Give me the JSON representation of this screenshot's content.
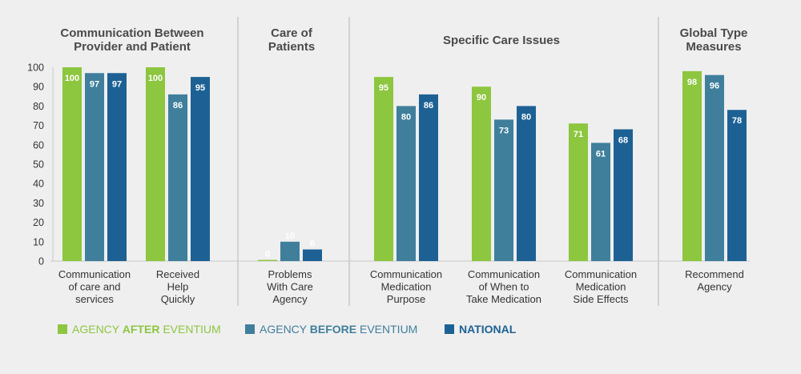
{
  "chart_data": {
    "type": "bar",
    "ylim": [
      0,
      100
    ],
    "yticks": [
      0,
      10,
      20,
      30,
      40,
      50,
      60,
      70,
      80,
      90,
      100
    ],
    "groups": [
      {
        "title": [
          "Communication Between",
          "Provider and Patient"
        ],
        "categories": [
          0,
          1
        ]
      },
      {
        "title": [
          "Care of",
          "Patients"
        ],
        "categories": [
          2
        ]
      },
      {
        "title": [
          "Specific Care Issues"
        ],
        "categories": [
          3,
          4,
          5
        ]
      },
      {
        "title": [
          "Global Type",
          "Measures"
        ],
        "categories": [
          6
        ]
      }
    ],
    "categories": [
      [
        "Communication",
        "of care and",
        "services"
      ],
      [
        "Received",
        "Help",
        "Quickly"
      ],
      [
        "Problems",
        "With Care",
        "Agency"
      ],
      [
        "Communication",
        "Medication",
        "Purpose"
      ],
      [
        "Communication",
        "of When to",
        "Take Medication"
      ],
      [
        "Communication",
        "Medication",
        "Side Effects"
      ],
      [
        "Recommend",
        "Agency"
      ]
    ],
    "series": [
      {
        "name": "AGENCY AFTER EVENTIUM",
        "color": "#8dc63f",
        "values": [
          100,
          100,
          0,
          95,
          90,
          71,
          98
        ]
      },
      {
        "name": "AGENCY BEFORE EVENTIUM",
        "color": "#3f7f9b",
        "values": [
          97,
          86,
          10,
          80,
          73,
          61,
          96
        ]
      },
      {
        "name": "NATIONAL",
        "color": "#1d6194",
        "values": [
          97,
          95,
          6,
          86,
          80,
          68,
          78
        ]
      }
    ]
  },
  "legend": {
    "after": {
      "pre": "AGENCY ",
      "bold": "AFTER",
      "post": " EVENTIUM",
      "color": "#8dc63f"
    },
    "before": {
      "pre": "AGENCY ",
      "bold": "BEFORE",
      "post": " EVENTIUM",
      "color": "#3f7f9b"
    },
    "national": {
      "pre": "",
      "bold": "",
      "post": "NATIONAL",
      "color": "#1d6194"
    }
  }
}
